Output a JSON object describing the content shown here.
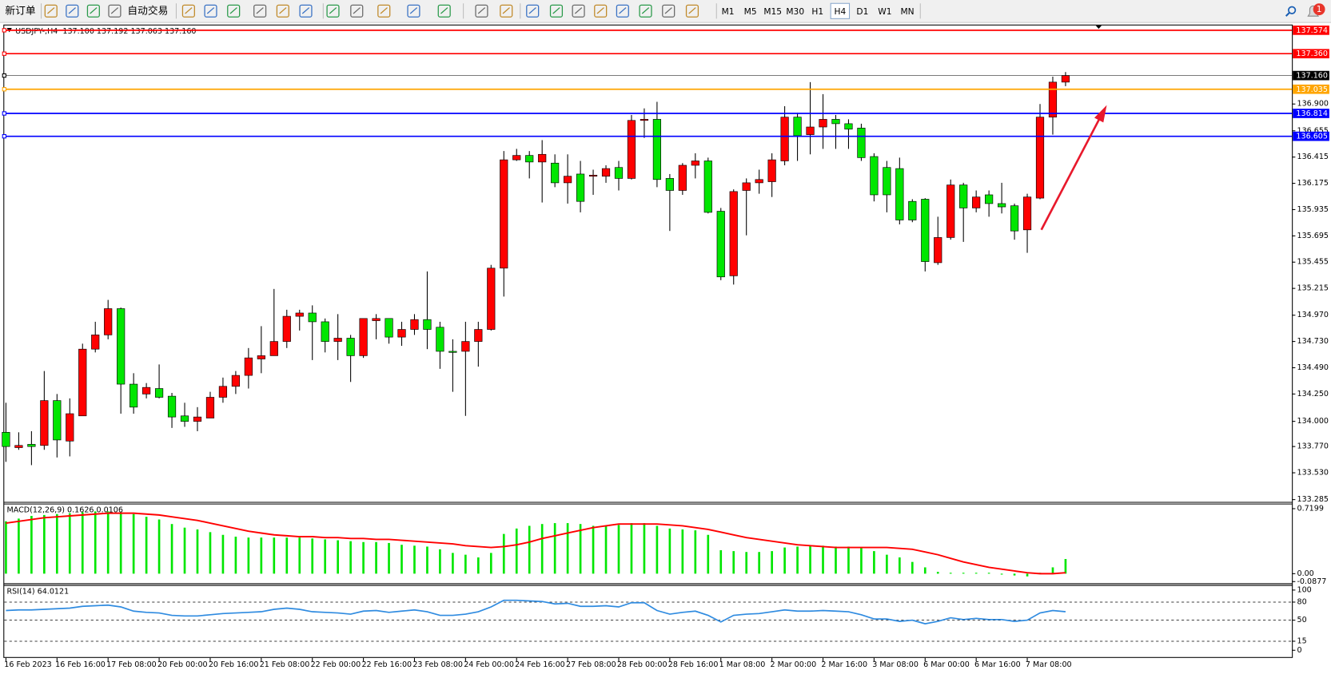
{
  "toolbar": {
    "new_order": "新订单",
    "auto_trading": "自动交易",
    "timeframes": [
      "M1",
      "M5",
      "M15",
      "M30",
      "H1",
      "H4",
      "D1",
      "W1",
      "MN"
    ],
    "active_timeframe": "H4",
    "alerts": 1
  },
  "chart_data": [
    {
      "type": "candlestick",
      "title": "USDJPY-,H4  137.100 137.192 137.063 137.160",
      "categories": [
        "16 Feb 2023",
        null,
        null,
        null,
        "16 Feb 16:00",
        null,
        null,
        null,
        "17 Feb 08:00",
        null,
        null,
        null,
        "20 Feb 00:00",
        null,
        null,
        null,
        "20 Feb 16:00",
        null,
        null,
        null,
        "21 Feb 08:00",
        null,
        null,
        null,
        "22 Feb 00:00",
        null,
        null,
        null,
        "22 Feb 16:00",
        null,
        null,
        null,
        "23 Feb 08:00",
        null,
        null,
        null,
        "24 Feb 00:00",
        null,
        null,
        null,
        "24 Feb 16:00",
        null,
        null,
        null,
        "27 Feb 08:00",
        null,
        null,
        null,
        "28 Feb 00:00",
        null,
        null,
        null,
        "28 Feb 16:00",
        null,
        null,
        null,
        "1 Mar 08:00",
        null,
        null,
        null,
        "2 Mar 00:00",
        null,
        null,
        null,
        "2 Mar 16:00",
        null,
        null,
        null,
        "3 Mar 08:00",
        null,
        null,
        null,
        "6 Mar 00:00",
        null,
        null,
        null,
        "6 Mar 16:00",
        null,
        null,
        null,
        "7 Mar 08:00",
        null,
        null,
        null
      ],
      "open": [
        133.9,
        133.76,
        133.79,
        133.78,
        134.19,
        133.82,
        134.05,
        134.66,
        134.79,
        135.03,
        134.34,
        134.25,
        134.3,
        134.23,
        134.05,
        134.0,
        134.03,
        134.22,
        134.32,
        134.42,
        134.57,
        134.6,
        134.73,
        134.96,
        134.99,
        134.91,
        134.73,
        134.76,
        134.6,
        134.92,
        134.94,
        134.77,
        134.84,
        134.93,
        134.86,
        134.64,
        134.64,
        134.73,
        134.84,
        135.4,
        136.39,
        136.43,
        136.37,
        136.36,
        136.18,
        136.26,
        136.24,
        136.24,
        136.32,
        136.22,
        136.75,
        136.76,
        136.22,
        136.11,
        136.34,
        136.38,
        135.92,
        135.33,
        136.11,
        136.18,
        136.19,
        136.38,
        136.78,
        136.62,
        136.69,
        136.76,
        136.72,
        136.68,
        136.42,
        136.32,
        136.31,
        136.01,
        136.03,
        135.45,
        135.68,
        136.16,
        135.95,
        136.07,
        135.99,
        135.97,
        135.75,
        136.04,
        136.78,
        137.1
      ],
      "high": [
        134.17,
        133.9,
        133.91,
        134.46,
        134.25,
        134.21,
        134.71,
        134.91,
        135.11,
        135.04,
        134.44,
        134.35,
        134.52,
        134.26,
        134.17,
        134.13,
        134.27,
        134.4,
        134.46,
        134.67,
        134.87,
        135.21,
        135.02,
        135.02,
        135.06,
        134.94,
        134.98,
        134.79,
        134.94,
        134.98,
        134.94,
        134.91,
        134.98,
        135.37,
        134.91,
        134.75,
        134.91,
        134.91,
        135.43,
        136.47,
        136.49,
        136.47,
        136.57,
        136.44,
        136.44,
        136.38,
        136.3,
        136.34,
        136.38,
        136.8,
        136.86,
        136.92,
        136.26,
        136.36,
        136.45,
        136.41,
        135.95,
        136.12,
        136.22,
        136.3,
        136.45,
        136.88,
        136.82,
        137.1,
        136.99,
        136.8,
        136.76,
        136.72,
        136.45,
        136.38,
        136.41,
        136.03,
        136.04,
        135.87,
        136.21,
        136.18,
        136.11,
        136.11,
        136.18,
        135.99,
        136.08,
        136.9,
        137.15,
        137.192
      ],
      "low": [
        133.63,
        133.74,
        133.6,
        133.74,
        133.67,
        133.68,
        134.05,
        134.63,
        134.75,
        134.07,
        134.07,
        134.21,
        134.21,
        133.94,
        133.95,
        133.91,
        134.03,
        134.17,
        134.25,
        134.3,
        134.44,
        134.6,
        134.67,
        134.83,
        134.56,
        134.63,
        134.56,
        134.36,
        134.58,
        134.75,
        134.71,
        134.69,
        134.79,
        134.66,
        134.48,
        134.27,
        134.05,
        134.5,
        134.83,
        135.14,
        136.38,
        136.22,
        136.0,
        136.14,
        135.99,
        135.91,
        136.07,
        136.18,
        136.11,
        136.21,
        136.59,
        136.14,
        135.74,
        136.07,
        136.22,
        135.9,
        135.29,
        135.25,
        135.7,
        136.08,
        136.05,
        136.34,
        136.38,
        136.44,
        136.49,
        136.49,
        136.49,
        136.38,
        136.01,
        135.91,
        135.8,
        135.82,
        135.37,
        135.43,
        135.66,
        135.64,
        135.91,
        135.87,
        135.9,
        135.66,
        135.54,
        136.03,
        136.62,
        137.063
      ],
      "close": [
        133.77,
        133.78,
        133.77,
        134.19,
        133.83,
        134.07,
        134.66,
        134.79,
        135.03,
        134.34,
        134.13,
        134.31,
        134.22,
        134.04,
        134.0,
        134.04,
        134.22,
        134.32,
        134.42,
        134.58,
        134.6,
        134.73,
        134.96,
        134.99,
        134.91,
        134.73,
        134.76,
        134.6,
        134.94,
        134.94,
        134.77,
        134.84,
        134.93,
        134.84,
        134.64,
        134.63,
        134.73,
        134.84,
        135.4,
        136.39,
        136.43,
        136.37,
        136.44,
        136.18,
        136.24,
        136.01,
        136.25,
        136.31,
        136.22,
        136.75,
        136.76,
        136.21,
        136.11,
        136.34,
        136.38,
        135.91,
        135.32,
        136.1,
        136.18,
        136.21,
        136.39,
        136.78,
        136.61,
        136.69,
        136.76,
        136.72,
        136.67,
        136.41,
        136.07,
        136.07,
        135.84,
        135.84,
        135.46,
        135.68,
        136.16,
        135.95,
        136.05,
        135.99,
        135.96,
        135.74,
        136.05,
        136.78,
        137.1,
        137.16
      ],
      "up_color": "#ff0000",
      "down_color": "#00e600",
      "ylim": [
        133.264,
        137.618
      ],
      "yticks": [
        {
          "value": 136.9,
          "label": "136.900"
        },
        136.655,
        136.415,
        136.175,
        135.935,
        135.695,
        135.455,
        135.215,
        {
          "value": 134.97,
          "label": "134.970"
        },
        {
          "value": 134.73,
          "label": "134.730"
        },
        {
          "value": 134.49,
          "label": "134.490"
        },
        {
          "value": 134.25,
          "label": "134.250"
        },
        {
          "value": 134,
          "label": "134.000"
        },
        {
          "value": 133.77,
          "label": "133.770"
        },
        {
          "value": 133.53,
          "label": "133.530"
        },
        133.285
      ],
      "levels": [
        {
          "value": 137.574,
          "color": "#ff0000"
        },
        {
          "value": 137.36,
          "label": "137.360",
          "color": "#ff0000"
        },
        {
          "value": 137.16,
          "label": "137.160",
          "color": "#000000"
        },
        {
          "value": 137.035,
          "color": "#ffa500"
        },
        {
          "value": 136.814,
          "color": "#0000ff"
        },
        {
          "value": 136.605,
          "color": "#0000ff"
        }
      ]
    },
    {
      "type": "macd",
      "title": "MACD(12,26,9) 0.1626 0.0106",
      "histogram": {
        "color": "#00e600",
        "values": [
          0.58,
          0.61,
          0.64,
          0.65,
          0.66,
          0.67,
          0.68,
          0.69,
          0.69,
          0.68,
          0.66,
          0.63,
          0.6,
          0.55,
          0.51,
          0.49,
          0.46,
          0.43,
          0.41,
          0.4,
          0.4,
          0.4,
          0.4,
          0.4,
          0.39,
          0.38,
          0.37,
          0.36,
          0.35,
          0.35,
          0.34,
          0.32,
          0.31,
          0.3,
          0.27,
          0.23,
          0.21,
          0.18,
          0.23,
          0.44,
          0.5,
          0.53,
          0.55,
          0.56,
          0.56,
          0.55,
          0.53,
          0.53,
          0.54,
          0.56,
          0.56,
          0.53,
          0.5,
          0.49,
          0.48,
          0.43,
          0.26,
          0.25,
          0.24,
          0.24,
          0.25,
          0.29,
          0.3,
          0.31,
          0.31,
          0.3,
          0.3,
          0.29,
          0.25,
          0.21,
          0.18,
          0.13,
          0.07,
          0.02,
          0.01,
          0.01,
          0.01,
          0.01,
          -0.01,
          -0.02,
          -0.03,
          0.01,
          0.07,
          0.1626
        ]
      },
      "signal": {
        "color": "#ff0000",
        "values": [
          0.56,
          0.58,
          0.6,
          0.62,
          0.63,
          0.64,
          0.65,
          0.66,
          0.67,
          0.67,
          0.67,
          0.66,
          0.65,
          0.63,
          0.61,
          0.59,
          0.56,
          0.53,
          0.5,
          0.47,
          0.45,
          0.43,
          0.42,
          0.41,
          0.41,
          0.4,
          0.4,
          0.39,
          0.39,
          0.38,
          0.38,
          0.37,
          0.36,
          0.35,
          0.34,
          0.33,
          0.31,
          0.3,
          0.29,
          0.3,
          0.32,
          0.35,
          0.39,
          0.42,
          0.45,
          0.48,
          0.51,
          0.53,
          0.55,
          0.55,
          0.55,
          0.55,
          0.54,
          0.53,
          0.51,
          0.49,
          0.46,
          0.43,
          0.4,
          0.38,
          0.36,
          0.34,
          0.32,
          0.31,
          0.3,
          0.29,
          0.29,
          0.29,
          0.29,
          0.29,
          0.28,
          0.27,
          0.24,
          0.21,
          0.17,
          0.13,
          0.1,
          0.07,
          0.05,
          0.03,
          0.01,
          0,
          0,
          0.0106
        ]
      },
      "ylim": [
        -0.0877,
        0.7199
      ],
      "yticks": [
        0.7199,
        {
          "value": 0,
          "label": "0.00"
        },
        -0.0877
      ]
    },
    {
      "type": "line",
      "title": "RSI(14) 64.0121",
      "color": "#2f8be0",
      "values": [
        66,
        67,
        67,
        68,
        69,
        70,
        73,
        74,
        75,
        72,
        65,
        63,
        62,
        58,
        57,
        57,
        59,
        61,
        62,
        63,
        64,
        68,
        70,
        68,
        64,
        63,
        62,
        60,
        65,
        66,
        63,
        65,
        67,
        64,
        58,
        58,
        60,
        64,
        72,
        83,
        83,
        82,
        81,
        77,
        78,
        73,
        73,
        74,
        72,
        79,
        79,
        66,
        60,
        63,
        65,
        58,
        47,
        58,
        60,
        61,
        64,
        67,
        65,
        65,
        66,
        65,
        64,
        59,
        52,
        52,
        48,
        50,
        44,
        48,
        54,
        51,
        53,
        51,
        51,
        48,
        50,
        62,
        66,
        64.0121
      ],
      "ylim": [
        0,
        100
      ],
      "yticks": [
        100,
        80,
        50,
        15,
        0
      ],
      "levels": [
        80,
        50,
        15
      ]
    }
  ]
}
